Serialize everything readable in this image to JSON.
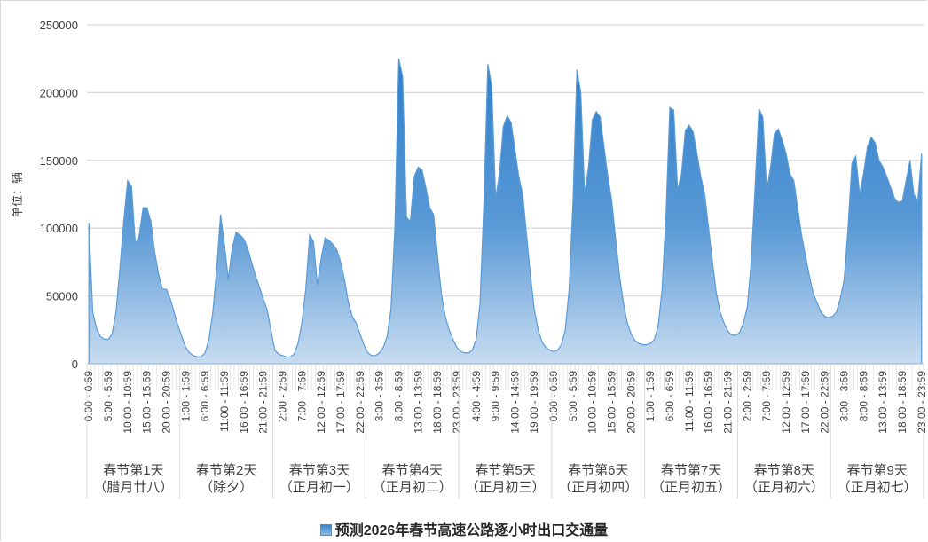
{
  "chart_data": {
    "type": "area",
    "title": "",
    "xlabel": "",
    "ylabel": "单位：辆",
    "ylim": [
      0,
      250000
    ],
    "yticks": [
      0,
      50000,
      100000,
      150000,
      200000,
      250000
    ],
    "ytick_labels": [
      "0",
      "50000",
      "100000",
      "150000",
      "200000",
      "250000"
    ],
    "grid": true,
    "legend_position": "bottom",
    "groups": [
      {
        "line1": "春节第1天",
        "line2": "（腊月廿八）"
      },
      {
        "line1": "春节第2天",
        "line2": "（除夕）"
      },
      {
        "line1": "春节第3天",
        "line2": "（正月初一）"
      },
      {
        "line1": "春节第4天",
        "line2": "（正月初二）"
      },
      {
        "line1": "春节第5天",
        "line2": "（正月初三）"
      },
      {
        "line1": "春节第6天",
        "line2": "（正月初四）"
      },
      {
        "line1": "春节第7天",
        "line2": "（正月初五）"
      },
      {
        "line1": "春节第8天",
        "line2": "（正月初六）"
      },
      {
        "line1": "春节第9天",
        "line2": "（正月初七）"
      }
    ],
    "x_label_every": 5,
    "x_label_format": "H:00 - H:59",
    "series": [
      {
        "name": "预测2026年春节高速公路逐小时出口交通量",
        "color": "#3a86cc",
        "values": [
          104000,
          38000,
          26000,
          20000,
          18000,
          18000,
          22000,
          38000,
          70000,
          105000,
          135000,
          131000,
          88000,
          95000,
          115000,
          115000,
          105000,
          82000,
          66000,
          55000,
          55000,
          48000,
          38000,
          28000,
          20000,
          12000,
          8000,
          6000,
          5000,
          5000,
          8000,
          18000,
          38000,
          70000,
          110000,
          88000,
          62000,
          85000,
          97000,
          95000,
          92000,
          85000,
          75000,
          65000,
          57000,
          48000,
          40000,
          25000,
          10000,
          7000,
          6000,
          5000,
          5000,
          7000,
          15000,
          30000,
          55000,
          95000,
          90000,
          58000,
          78000,
          93000,
          91000,
          88000,
          84000,
          75000,
          62000,
          45000,
          35000,
          30000,
          22000,
          14000,
          8000,
          6000,
          6000,
          8000,
          12000,
          20000,
          40000,
          100000,
          225000,
          212000,
          108000,
          105000,
          138000,
          145000,
          143000,
          130000,
          115000,
          110000,
          80000,
          52000,
          35000,
          25000,
          18000,
          12000,
          9000,
          8000,
          8000,
          10000,
          18000,
          45000,
          120000,
          221000,
          205000,
          122000,
          140000,
          175000,
          183000,
          178000,
          158000,
          138000,
          125000,
          95000,
          65000,
          40000,
          25000,
          16000,
          12000,
          10000,
          9000,
          10000,
          14000,
          25000,
          55000,
          120000,
          217000,
          200000,
          125000,
          145000,
          180000,
          186000,
          182000,
          160000,
          138000,
          120000,
          92000,
          65000,
          45000,
          30000,
          22000,
          17000,
          15000,
          14000,
          14000,
          15000,
          18000,
          28000,
          55000,
          110000,
          189000,
          187000,
          128000,
          140000,
          172000,
          176000,
          171000,
          155000,
          138000,
          125000,
          100000,
          75000,
          52000,
          38000,
          30000,
          24000,
          21000,
          21000,
          23000,
          30000,
          42000,
          75000,
          130000,
          188000,
          182000,
          128000,
          145000,
          170000,
          173000,
          165000,
          155000,
          140000,
          135000,
          115000,
          95000,
          80000,
          65000,
          52000,
          45000,
          38000,
          35000,
          34000,
          35000,
          38000,
          48000,
          62000,
          100000,
          148000,
          153000,
          125000,
          140000,
          160000,
          167000,
          163000,
          150000,
          145000,
          138000,
          130000,
          122000,
          119000,
          120000,
          135000,
          150000,
          125000,
          120000,
          155000
        ]
      }
    ]
  },
  "legend": {
    "label": "预测2026年春节高速公路逐小时出口交通量"
  }
}
